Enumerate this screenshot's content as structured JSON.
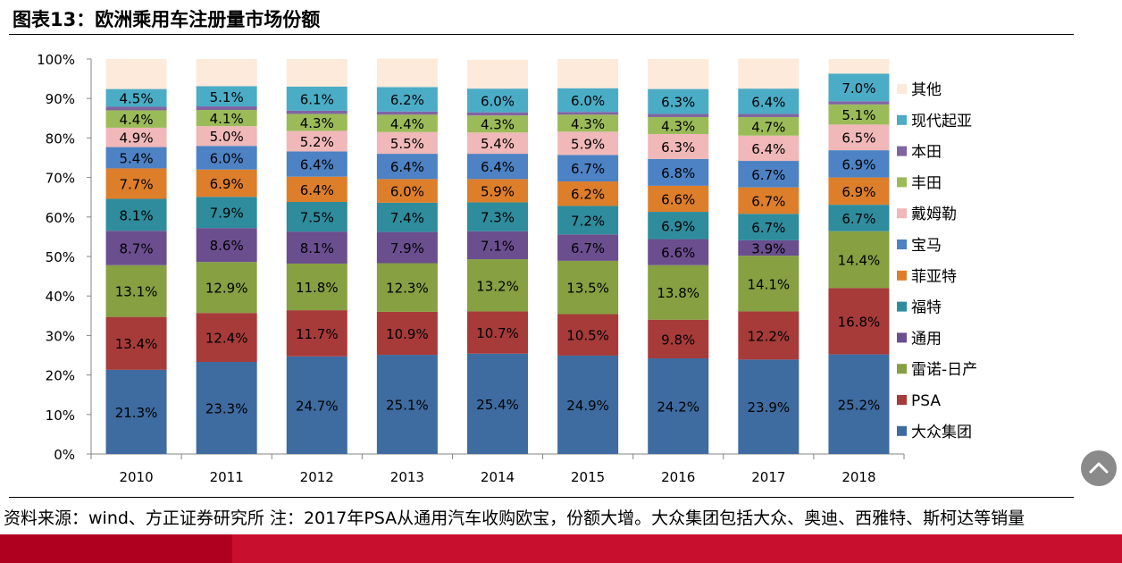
{
  "title": "图表13：欧洲乘用车注册量市场份额",
  "source_note": "资料来源：wind、方正证券研究所  注：2017年PSA从通用汽车收购欧宝，份额大增。大众集团包括大众、奥迪、西雅特、斯柯达等销量",
  "chart_data": {
    "type": "bar",
    "stacked": true,
    "percent": true,
    "title": "欧洲乘用车注册量市场份额",
    "xlabel": "",
    "ylabel": "",
    "ylim": [
      0,
      100
    ],
    "yticks": [
      "0%",
      "10%",
      "20%",
      "30%",
      "40%",
      "50%",
      "60%",
      "70%",
      "80%",
      "90%",
      "100%"
    ],
    "legend_position": "right",
    "categories": [
      "2010",
      "2011",
      "2012",
      "2013",
      "2014",
      "2015",
      "2016",
      "2017",
      "2018"
    ],
    "series": [
      {
        "name": "大众集团",
        "color": "#3E6BA0",
        "values": [
          21.3,
          23.3,
          24.7,
          25.1,
          25.4,
          24.9,
          24.2,
          23.9,
          25.2
        ]
      },
      {
        "name": "PSA",
        "color": "#A63B3A",
        "values": [
          13.4,
          12.4,
          11.7,
          10.9,
          10.7,
          10.5,
          9.8,
          12.2,
          16.8
        ]
      },
      {
        "name": "雷诺-日产",
        "color": "#86A042",
        "values": [
          13.1,
          12.9,
          11.8,
          12.3,
          13.2,
          13.5,
          13.8,
          14.1,
          14.4
        ]
      },
      {
        "name": "通用",
        "color": "#6A4E8E",
        "values": [
          8.7,
          8.6,
          8.1,
          7.9,
          7.1,
          6.7,
          6.6,
          3.9,
          0
        ]
      },
      {
        "name": "福特",
        "color": "#2E8C9C",
        "values": [
          8.1,
          7.9,
          7.5,
          7.4,
          7.3,
          7.2,
          6.9,
          6.7,
          6.7
        ]
      },
      {
        "name": "菲亚特",
        "color": "#DD7E2B",
        "values": [
          7.7,
          6.9,
          6.4,
          6.0,
          5.9,
          6.2,
          6.6,
          6.7,
          6.9
        ]
      },
      {
        "name": "宝马",
        "color": "#4D82C4",
        "values": [
          5.4,
          6.0,
          6.4,
          6.4,
          6.4,
          6.7,
          6.8,
          6.7,
          6.9
        ]
      },
      {
        "name": "戴姆勒",
        "color": "#F0B8B8",
        "values": [
          4.9,
          5.0,
          5.2,
          5.5,
          5.4,
          5.9,
          6.3,
          6.4,
          6.5
        ]
      },
      {
        "name": "丰田",
        "color": "#9BBB59",
        "values": [
          4.4,
          4.1,
          4.3,
          4.4,
          4.3,
          4.3,
          4.3,
          4.7,
          5.1
        ]
      },
      {
        "name": "本田",
        "color": "#8064A2",
        "values": [
          0.9,
          0.9,
          0.8,
          0.8,
          0.8,
          0.7,
          0.8,
          0.8,
          0.8
        ]
      },
      {
        "name": "现代起亚",
        "color": "#4BACC6",
        "values": [
          4.5,
          5.1,
          6.1,
          6.2,
          6.0,
          6.0,
          6.3,
          6.4,
          7.0
        ]
      },
      {
        "name": "其他",
        "color": "#FDEADA",
        "values": [
          7.6,
          6.9,
          7.0,
          7.2,
          7.3,
          7.4,
          7.6,
          7.6,
          3.7
        ]
      }
    ],
    "labeled_series": [
      "大众集团",
      "PSA",
      "雷诺-日产",
      "通用",
      "福特",
      "菲亚特",
      "宝马",
      "戴姆勒",
      "丰田",
      "现代起亚"
    ],
    "value_suffix": "%"
  },
  "scroll_top_icon": "chevron-up-icon"
}
